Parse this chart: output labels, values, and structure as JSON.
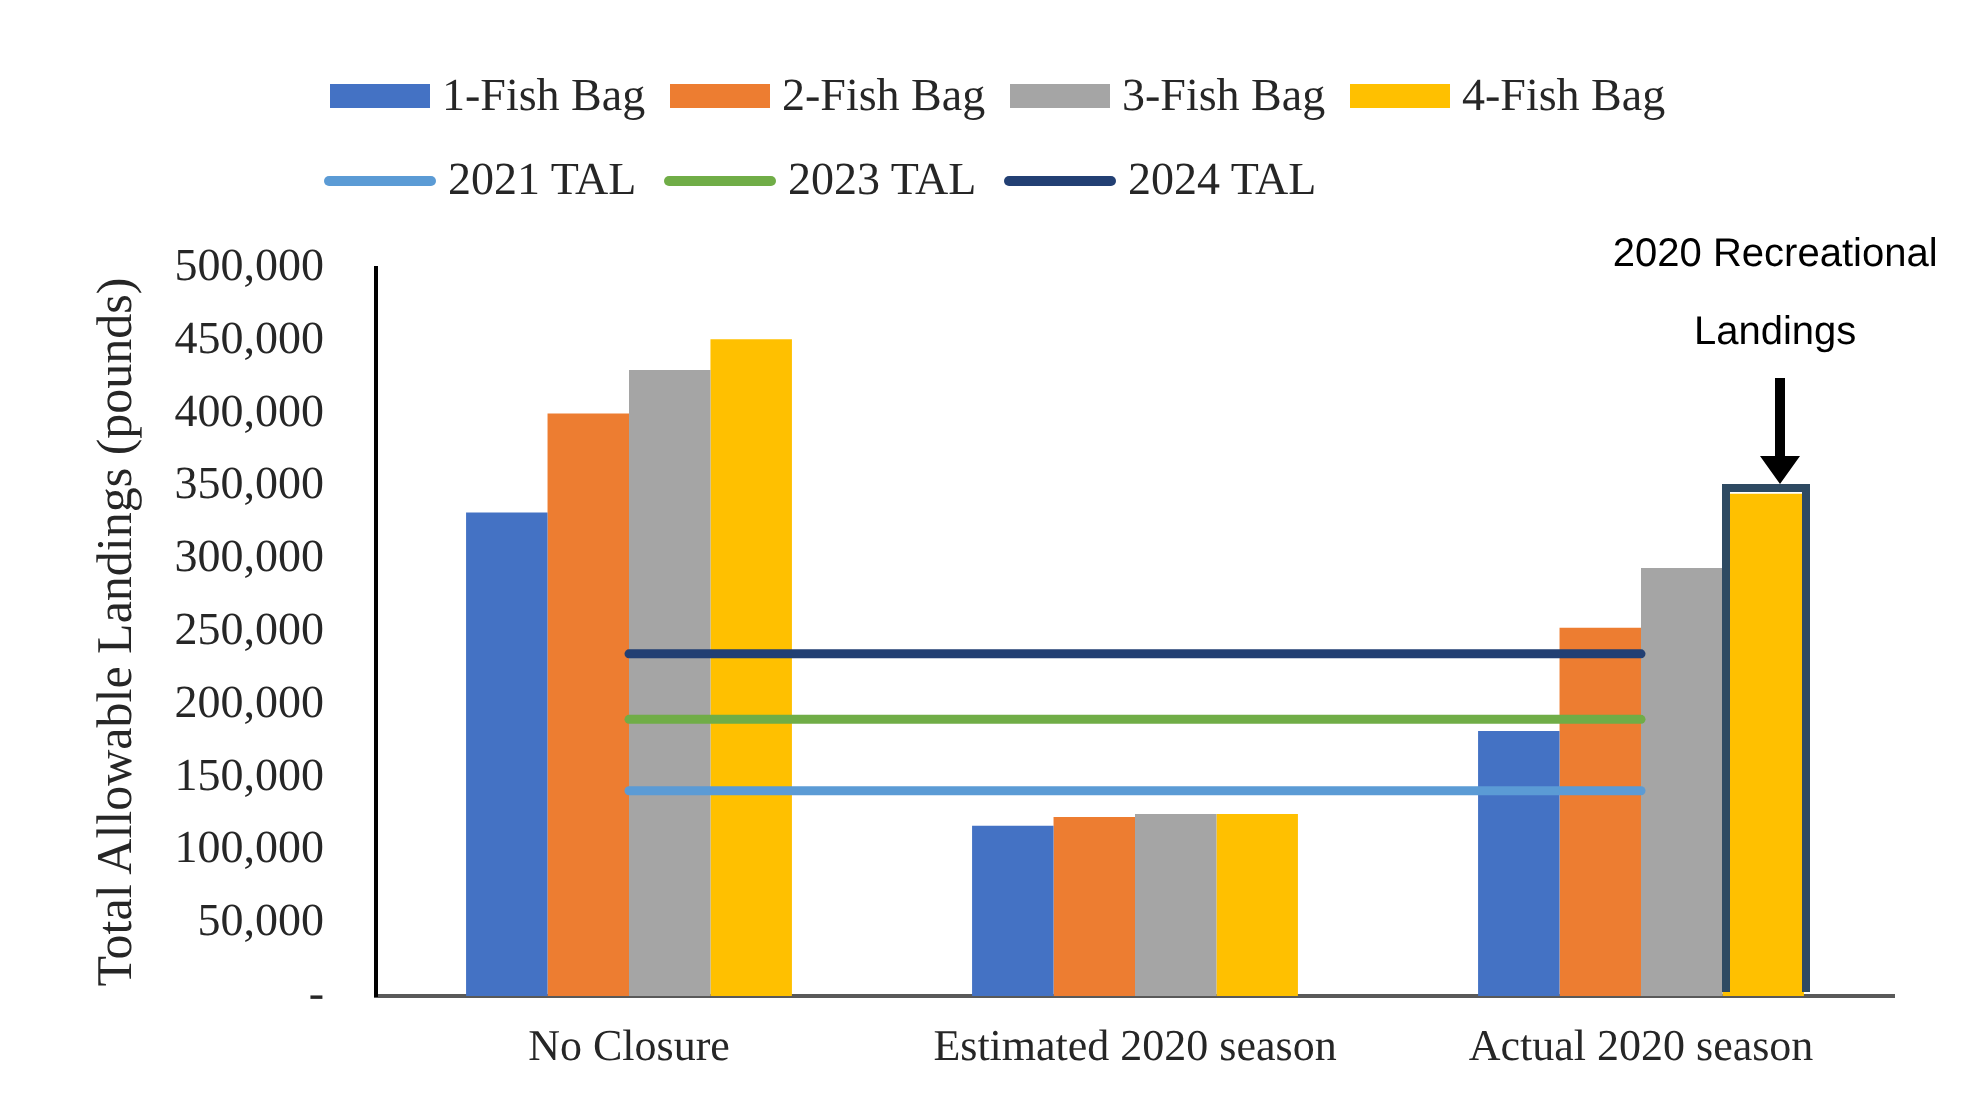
{
  "chart_data": {
    "type": "bar",
    "ylabel": "Total Allowable Landings (pounds)",
    "categories": [
      "No Closure",
      "Estimated 2020 season",
      "Actual 2020 season"
    ],
    "series": [
      {
        "name": "1-Fish Bag",
        "color": "#4472c4",
        "values": [
          332000,
          117000,
          182000
        ]
      },
      {
        "name": "2-Fish Bag",
        "color": "#ed7d31",
        "values": [
          400000,
          123000,
          253000
        ]
      },
      {
        "name": "3-Fish Bag",
        "color": "#a5a5a5",
        "values": [
          430000,
          125000,
          294000
        ]
      },
      {
        "name": "4-Fish Bag",
        "color": "#ffc000",
        "values": [
          451000,
          125000,
          345000
        ]
      },
      {
        "name": "2021 TAL",
        "type": "line",
        "color": "#5b9bd5",
        "values": [
          141000,
          141000,
          141000
        ]
      },
      {
        "name": "2023 TAL",
        "type": "line",
        "color": "#70ad47",
        "values": [
          190000,
          190000,
          190000
        ]
      },
      {
        "name": "2024 TAL",
        "type": "line",
        "color": "#223f73",
        "values": [
          235000,
          235000,
          235000
        ]
      }
    ],
    "ylim": [
      0,
      500000
    ],
    "yticks": [
      {
        "value": 0,
        "label": "-"
      },
      {
        "value": 50000,
        "label": "50,000"
      },
      {
        "value": 100000,
        "label": "100,000"
      },
      {
        "value": 150000,
        "label": "150,000"
      },
      {
        "value": 200000,
        "label": "200,000"
      },
      {
        "value": 250000,
        "label": "250,000"
      },
      {
        "value": 300000,
        "label": "300,000"
      },
      {
        "value": 350000,
        "label": "350,000"
      },
      {
        "value": 400000,
        "label": "400,000"
      },
      {
        "value": 450000,
        "label": "450,000"
      },
      {
        "value": 500000,
        "label": "500,000"
      }
    ],
    "legend": "top",
    "annotations": [
      "2020 Recreational Landings"
    ]
  }
}
